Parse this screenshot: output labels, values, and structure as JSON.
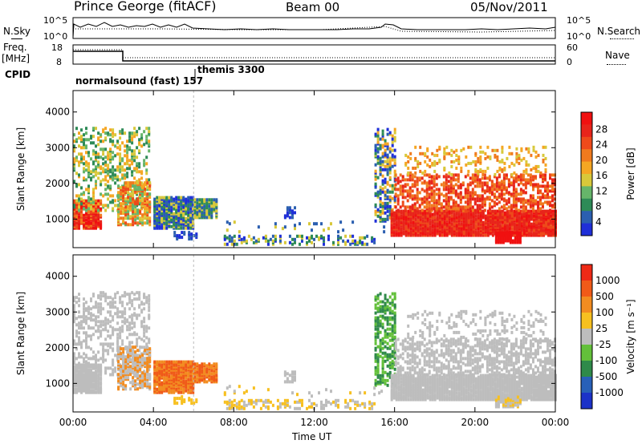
{
  "header": {
    "station": "Prince George (fitACF)",
    "beam": "Beam 00",
    "date": "05/Nov/2011"
  },
  "top_panels": {
    "nsky_label": "N.Sky",
    "nsearch_label": "N.Search",
    "nsky_ticks": [
      "10^5",
      "10^0"
    ],
    "nsearch_ticks": [
      "10^5",
      "10^0"
    ],
    "freq_label_line1": "Freq.",
    "freq_label_line2": "[MHz]",
    "freq_ticks": [
      "18",
      "8"
    ],
    "nave_label": "Nave",
    "nave_ticks": [
      "60",
      "0"
    ],
    "cpid_label": "CPID",
    "cpid_mode1": "normalsound (fast) 157",
    "cpid_mode2": "themis 3300"
  },
  "chart_data": [
    {
      "type": "heatmap",
      "name": "power",
      "ylabel": "Slant Range [km]",
      "yticks": [
        "1000",
        "2000",
        "3000",
        "4000"
      ],
      "ylim": [
        200,
        4600
      ],
      "xlim": [
        "00:00",
        "24:00"
      ],
      "colorbar_label": "Power [dB]",
      "colorbar_ticks": [
        "4",
        "8",
        "12",
        "16",
        "20",
        "24",
        "28"
      ],
      "colorscale": [
        "#1f2fd8",
        "#2b5fb0",
        "#2e8b57",
        "#66b56a",
        "#d8c83a",
        "#f5a623",
        "#f07a1e",
        "#ee4a1a",
        "#e8241a",
        "#f01010"
      ]
    },
    {
      "type": "heatmap",
      "name": "velocity",
      "ylabel": "Slant Range [km]",
      "yticks": [
        "1000",
        "2000",
        "3000",
        "4000"
      ],
      "ylim": [
        200,
        4600
      ],
      "xlim": [
        "00:00",
        "24:00"
      ],
      "xlabel": "Time UT",
      "xticks": [
        "00:00",
        "04:00",
        "08:00",
        "12:00",
        "16:00",
        "20:00",
        "00:00"
      ],
      "colorbar_label": "Velocity [m s⁻¹]",
      "colorbar_ticks": [
        "1000",
        "500",
        "100",
        "25",
        "-25",
        "-100",
        "-500",
        "-1000"
      ],
      "colorscale": [
        "#1c32c8",
        "#2860b8",
        "#2f8a4a",
        "#63c03a",
        "#bdbdbd",
        "#f7c020",
        "#f28c20",
        "#f05a18",
        "#ee2a16"
      ]
    }
  ]
}
